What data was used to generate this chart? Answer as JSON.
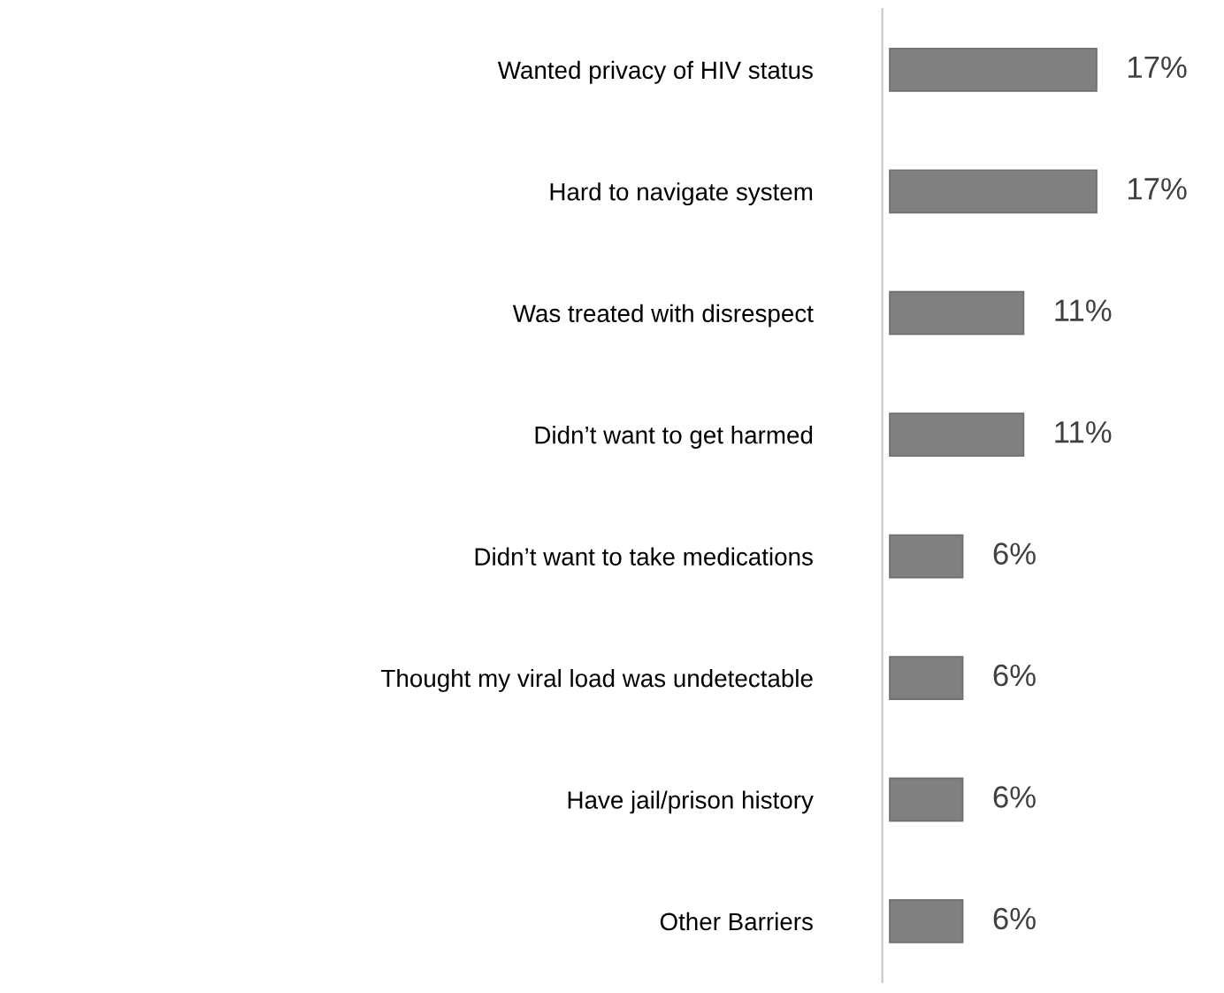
{
  "chart_data": {
    "type": "bar",
    "orientation": "horizontal",
    "categories": [
      "Wanted privacy of HIV status",
      "Hard to navigate system",
      "Was treated with disrespect",
      "Didn’t want to get harmed",
      "Didn’t want to take medications",
      "Thought my viral load was undetectable",
      "Have jail/prison history",
      "Other Barriers"
    ],
    "values": [
      17,
      17,
      11,
      11,
      6,
      6,
      6,
      6
    ],
    "value_labels": [
      "17%",
      "17%",
      "11%",
      "11%",
      "6%",
      "6%",
      "6%",
      "6%"
    ],
    "color": "#808080",
    "grid": false,
    "legend": false
  }
}
